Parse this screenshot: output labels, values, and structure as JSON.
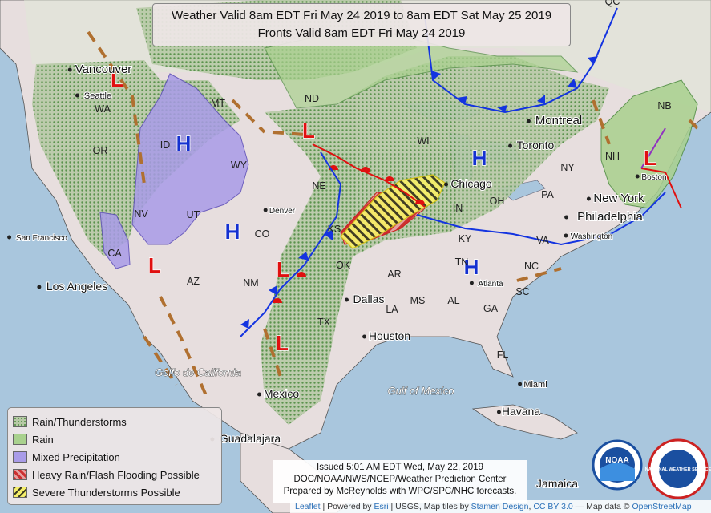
{
  "title": {
    "line1": "Weather Valid 8am EDT Fri May 24 2019 to 8am EDT Sat May 25 2019",
    "line2": "Fronts Valid 8am EDT Fri May 24 2019"
  },
  "legend": {
    "items": [
      {
        "label": "Rain/Thunderstorms",
        "color": "#8fbc7a"
      },
      {
        "label": "Rain",
        "color": "#9ccd8d"
      },
      {
        "label": "Mixed Precipitation",
        "color": "#a99ce8"
      },
      {
        "label": "Heavy Rain/Flash Flooding Possible",
        "color": "#d65050"
      },
      {
        "label": "Severe Thunderstorms Possible",
        "color": "#f2e21c"
      }
    ]
  },
  "issued": {
    "line1": "Issued 5:01 AM EDT Wed, May 22, 2019",
    "line2": "DOC/NOAA/NWS/NCEP/Weather Prediction Center",
    "line3": "Prepared by McReynolds with WPC/SPC/NHC forecasts."
  },
  "attribution": {
    "leaflet": "Leaflet",
    "powered": "| Powered by",
    "esri": "Esri",
    "usgs": "| USGS, Map tiles by",
    "stamen": "Stamen Design",
    "cc": "CC BY 3.0",
    "mapdata": "— Map data ©",
    "osm": "OpenStreetMap"
  },
  "logos": {
    "noaa": "NOAA",
    "nws": "NATIONAL WEATHER SERVICE"
  },
  "pressure_centers": [
    {
      "type": "L",
      "color": "#e01010"
    },
    {
      "type": "L",
      "color": "#e01010"
    },
    {
      "type": "L",
      "color": "#e01010"
    },
    {
      "type": "L",
      "color": "#e01010"
    },
    {
      "type": "L",
      "color": "#e01010"
    },
    {
      "type": "L",
      "color": "#e01010"
    },
    {
      "type": "H",
      "color": "#1430d0"
    },
    {
      "type": "H",
      "color": "#1430d0"
    },
    {
      "type": "H",
      "color": "#1430d0"
    },
    {
      "type": "H",
      "color": "#1430d0"
    }
  ],
  "places": {
    "states": [
      "WA",
      "OR",
      "ID",
      "MT",
      "WY",
      "NV",
      "UT",
      "CO",
      "AZ",
      "NM",
      "CA",
      "ND",
      "NE",
      "KS",
      "OK",
      "TX",
      "AR",
      "LA",
      "MS",
      "AL",
      "GA",
      "FL",
      "SC",
      "NC",
      "TN",
      "KY",
      "IN",
      "OH",
      "WI",
      "NY",
      "PA",
      "VA",
      "NB",
      "QC",
      "NH"
    ],
    "cities": [
      "Vancouver",
      "Seattle",
      "San Francisco",
      "Los Angeles",
      "Denver",
      "Dallas",
      "Houston",
      "Chicago",
      "Toronto",
      "Montreal",
      "New York",
      "Philadelphia",
      "Washington",
      "Atlanta",
      "Boston",
      "Miami",
      "Havana",
      "Jamaica",
      "Mexico",
      "Guadalajara"
    ],
    "water": [
      "Golfo de California",
      "Gulf of Mexico"
    ]
  }
}
